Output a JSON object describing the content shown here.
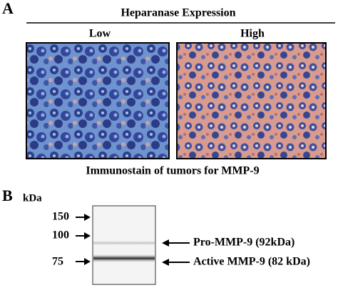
{
  "panel_a": {
    "label": "A",
    "title": "Heparanase Expression",
    "columns": [
      "Low",
      "High"
    ],
    "caption": "Immunostain of tumors for MMP-9"
  },
  "panel_b": {
    "label": "B",
    "unit": "kDa",
    "markers": [
      150,
      100,
      75
    ],
    "bands": [
      "Pro-MMP-9 (92kDa)",
      "Active MMP-9 (82 kDa)"
    ]
  }
}
